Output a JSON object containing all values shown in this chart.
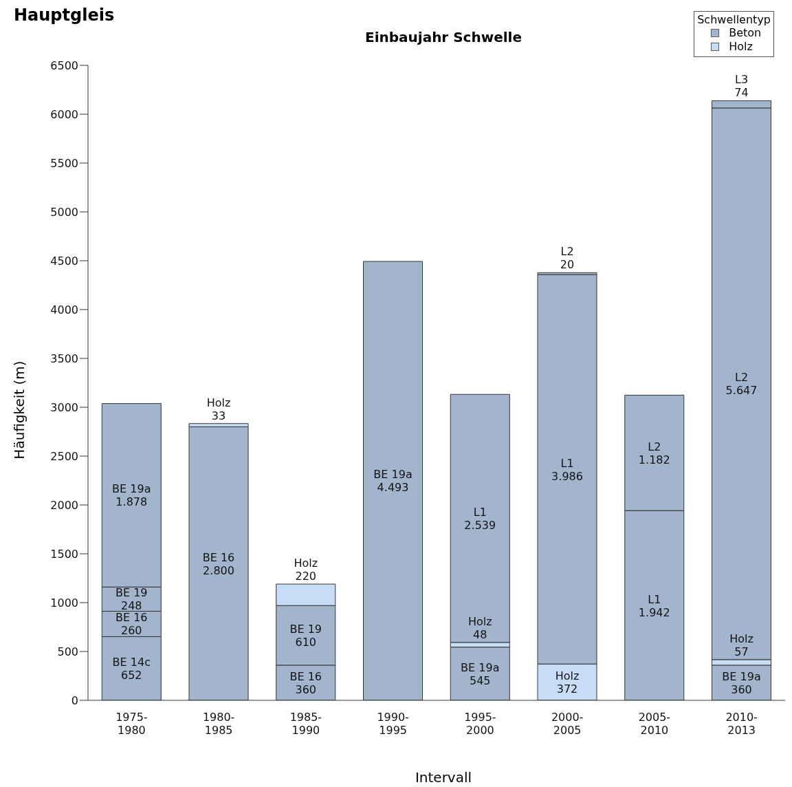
{
  "chart_data": {
    "type": "bar",
    "title": "Hauptgleis",
    "subtitle": "Einbaujahr Schwelle",
    "xlabel": "Intervall",
    "ylabel": "Häufigkeit (m)",
    "legend_title": "Schwellentyp",
    "legend": "top right",
    "stacked": true,
    "grid": false,
    "categories": [
      "1975-1980",
      "1980-1985",
      "1985-1990",
      "1990-1995",
      "1995-2000",
      "2000-2005",
      "2005-2010",
      "2010-2013"
    ],
    "ylim": [
      0,
      6500
    ],
    "yticks": [
      0,
      500,
      1000,
      1500,
      2000,
      2500,
      3000,
      3500,
      4000,
      4500,
      5000,
      5500,
      6000,
      6500
    ],
    "series": [
      {
        "name": "Beton",
        "color": "#a3b5cd",
        "values": [
          652,
          2800,
          360,
          4493,
          545,
          null,
          1942,
          360
        ],
        "value_labels": [
          "BE 14c\n652",
          "BE 16\n2.800",
          "BE 16\n360",
          "BE 19a\n4.493",
          "BE 19a\n545",
          null,
          "L1\n1.942",
          "BE 19a\n360"
        ]
      },
      {
        "color": "#a3b5cd",
        "values": [
          260,
          null,
          610,
          null,
          null,
          null,
          1182,
          null
        ],
        "value_labels": [
          "BE 16\n260",
          null,
          "BE 19\n610",
          null,
          null,
          null,
          "L2\n1.182",
          null
        ]
      },
      {
        "color": "#a3b5cd",
        "values": [
          248,
          null,
          null,
          null,
          null,
          null,
          null,
          null
        ],
        "value_labels": [
          "BE 19\n248",
          null,
          null,
          null,
          null,
          null,
          null,
          null
        ]
      },
      {
        "color": "#a3b5cd",
        "values": [
          1878,
          null,
          null,
          null,
          null,
          null,
          null,
          null
        ],
        "value_labels": [
          "BE 19a\n1.878",
          null,
          null,
          null,
          null,
          null,
          null,
          null
        ]
      },
      {
        "name": "Holz",
        "color": "#c6dcf7",
        "values": [
          null,
          33,
          220,
          null,
          48,
          372,
          null,
          57
        ],
        "value_labels": [
          null,
          "Holz\n33",
          "Holz\n220",
          null,
          "Holz\n48",
          "Holz\n372",
          null,
          "Holz\n57"
        ]
      },
      {
        "color": "#a3b5cd",
        "values": [
          null,
          null,
          null,
          null,
          2539,
          3986,
          null,
          5647
        ],
        "value_labels": [
          null,
          null,
          null,
          null,
          "L1\n2.539",
          "L1\n3.986",
          null,
          "L2\n5.647"
        ]
      },
      {
        "color": "#a3b5cd",
        "values": [
          null,
          null,
          null,
          null,
          null,
          20,
          null,
          74
        ],
        "value_labels": [
          null,
          null,
          null,
          null,
          null,
          "L2\n20",
          null,
          "L3\n74"
        ]
      }
    ]
  }
}
